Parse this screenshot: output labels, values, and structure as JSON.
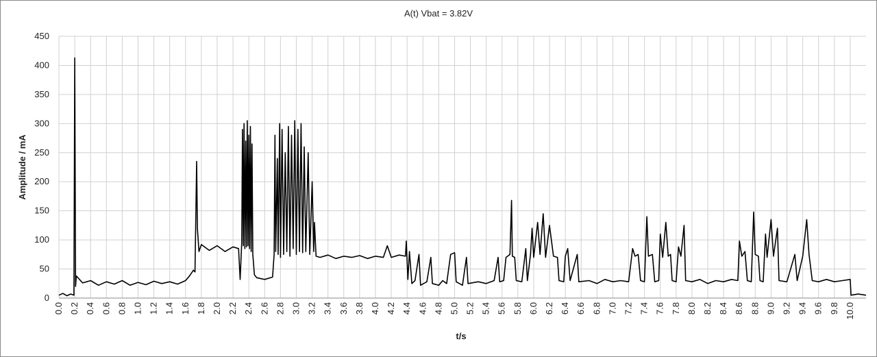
{
  "chart_data": {
    "type": "line",
    "title": "A(t)   Vbat = 3.82V",
    "x_label": "t/s",
    "y_label": "Amplitude / mA",
    "grid": true,
    "xlim": [
      0,
      10.2
    ],
    "ylim": [
      0,
      450
    ],
    "yticks": [
      0,
      50,
      100,
      150,
      200,
      250,
      300,
      350,
      400,
      450
    ],
    "xticks": [
      {
        "value": 0,
        "label": "0.0"
      },
      0.2,
      0.4,
      0.6,
      0.8,
      {
        "value": 1,
        "label": "1.0"
      },
      1.2,
      1.4,
      1.6,
      1.8,
      {
        "value": 2,
        "label": "2.0"
      },
      2.2,
      2.4,
      2.6,
      2.8,
      {
        "value": 3,
        "label": "3.0"
      },
      3.2,
      3.4,
      3.6,
      3.8,
      {
        "value": 4,
        "label": "4.0"
      },
      4.2,
      4.4,
      4.6,
      4.8,
      {
        "value": 5,
        "label": "5.0"
      },
      5.2,
      5.4,
      5.6,
      5.8,
      {
        "value": 6,
        "label": "6.0"
      },
      6.2,
      6.4,
      6.6,
      6.8,
      {
        "value": 7,
        "label": "7.0"
      },
      7.2,
      7.4,
      7.6,
      7.8,
      {
        "value": 8,
        "label": "8.0"
      },
      8.2,
      8.4,
      8.6,
      8.8,
      {
        "value": 9,
        "label": "9.0"
      },
      9.2,
      9.4,
      9.6,
      9.8,
      {
        "value": 10,
        "label": "10.0"
      }
    ],
    "x": [
      0,
      0.05,
      0.1,
      0.15,
      0.19,
      0.2,
      0.21,
      0.22,
      0.3,
      0.4,
      0.5,
      0.6,
      0.7,
      0.8,
      0.9,
      1.0,
      1.1,
      1.2,
      1.3,
      1.4,
      1.5,
      1.6,
      1.65,
      1.7,
      1.72,
      1.74,
      1.75,
      1.77,
      1.8,
      1.9,
      2.0,
      2.1,
      2.2,
      2.27,
      2.29,
      2.31,
      2.32,
      2.33,
      2.34,
      2.35,
      2.36,
      2.37,
      2.38,
      2.39,
      2.4,
      2.41,
      2.42,
      2.43,
      2.44,
      2.45,
      2.47,
      2.5,
      2.6,
      2.7,
      2.72,
      2.73,
      2.74,
      2.76,
      2.77,
      2.79,
      2.8,
      2.82,
      2.84,
      2.86,
      2.88,
      2.9,
      2.92,
      2.94,
      2.96,
      2.98,
      3.0,
      3.02,
      3.04,
      3.06,
      3.08,
      3.1,
      3.12,
      3.15,
      3.17,
      3.2,
      3.22,
      3.23,
      3.25,
      3.3,
      3.4,
      3.5,
      3.6,
      3.7,
      3.8,
      3.9,
      4.0,
      4.1,
      4.15,
      4.2,
      4.3,
      4.38,
      4.39,
      4.41,
      4.43,
      4.46,
      4.5,
      4.55,
      4.57,
      4.65,
      4.7,
      4.72,
      4.8,
      4.85,
      4.9,
      4.95,
      5.0,
      5.02,
      5.1,
      5.15,
      5.17,
      5.3,
      5.4,
      5.5,
      5.55,
      5.57,
      5.62,
      5.65,
      5.7,
      5.72,
      5.73,
      5.76,
      5.78,
      5.85,
      5.9,
      5.92,
      5.96,
      5.98,
      6.0,
      6.05,
      6.08,
      6.12,
      6.15,
      6.2,
      6.25,
      6.3,
      6.32,
      6.38,
      6.4,
      6.43,
      6.46,
      6.55,
      6.57,
      6.7,
      6.8,
      6.9,
      7.0,
      7.1,
      7.2,
      7.25,
      7.28,
      7.32,
      7.35,
      7.4,
      7.43,
      7.45,
      7.5,
      7.53,
      7.58,
      7.6,
      7.63,
      7.67,
      7.7,
      7.73,
      7.75,
      7.8,
      7.83,
      7.86,
      7.9,
      7.92,
      8.0,
      8.1,
      8.2,
      8.3,
      8.4,
      8.5,
      8.58,
      8.6,
      8.63,
      8.67,
      8.7,
      8.75,
      8.78,
      8.8,
      8.84,
      8.86,
      8.9,
      8.93,
      8.95,
      9.0,
      9.03,
      9.08,
      9.1,
      9.2,
      9.3,
      9.33,
      9.4,
      9.45,
      9.48,
      9.52,
      9.6,
      9.7,
      9.8,
      9.9,
      10.0,
      10.01,
      10.1,
      10.2
    ],
    "series": [
      {
        "color": "#000000",
        "values": [
          5,
          8,
          4,
          7,
          5,
          413,
          20,
          38,
          26,
          30,
          22,
          28,
          24,
          30,
          22,
          27,
          23,
          29,
          25,
          28,
          24,
          30,
          38,
          48,
          45,
          235,
          120,
          80,
          92,
          82,
          90,
          80,
          88,
          85,
          32,
          95,
          290,
          90,
          300,
          85,
          270,
          88,
          305,
          90,
          280,
          85,
          295,
          80,
          265,
          75,
          40,
          35,
          32,
          36,
          75,
          280,
          80,
          240,
          75,
          300,
          70,
          290,
          75,
          250,
          80,
          295,
          72,
          280,
          85,
          305,
          75,
          290,
          80,
          300,
          78,
          260,
          80,
          250,
          75,
          200,
          80,
          130,
          72,
          70,
          74,
          68,
          72,
          70,
          73,
          68,
          72,
          70,
          90,
          70,
          74,
          72,
          98,
          32,
          80,
          25,
          30,
          75,
          22,
          28,
          70,
          25,
          22,
          30,
          25,
          75,
          78,
          28,
          22,
          70,
          25,
          28,
          25,
          30,
          70,
          28,
          30,
          70,
          75,
          168,
          72,
          70,
          30,
          28,
          85,
          30,
          75,
          120,
          70,
          130,
          75,
          145,
          70,
          125,
          72,
          70,
          30,
          28,
          72,
          85,
          30,
          75,
          28,
          30,
          25,
          32,
          28,
          30,
          28,
          85,
          72,
          75,
          30,
          28,
          140,
          72,
          75,
          28,
          30,
          110,
          70,
          130,
          72,
          75,
          30,
          28,
          88,
          72,
          125,
          30,
          28,
          32,
          25,
          30,
          28,
          32,
          30,
          98,
          72,
          80,
          30,
          28,
          148,
          75,
          72,
          30,
          28,
          110,
          70,
          135,
          72,
          120,
          30,
          28,
          75,
          30,
          72,
          135,
          75,
          30,
          28,
          32,
          28,
          30,
          32,
          5,
          7,
          5
        ]
      }
    ]
  }
}
